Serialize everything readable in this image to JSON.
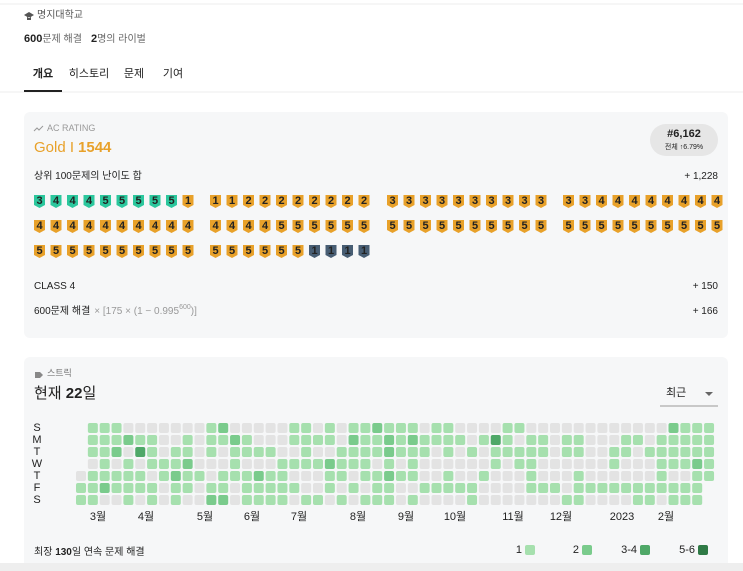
{
  "header": {
    "school": "명지대학교",
    "solved_count": "600",
    "solved_label": "문제 해결",
    "rival_count": "2",
    "rival_label": "명의 라이벌"
  },
  "tabs": [
    "개요",
    "히스토리",
    "문제",
    "기여"
  ],
  "rating": {
    "label": "AC RATING",
    "tier": "Gold I",
    "value": "1544",
    "rank": "#6,162",
    "rank_sub": "전체 ↑6.79%"
  },
  "top100": {
    "label": "상위 100문제의 난이도 합",
    "score": "+ 1,228",
    "badges": [
      {
        "color": "#2bc79d",
        "levels": [
          3,
          4,
          4,
          4,
          5,
          5,
          5,
          5,
          5
        ]
      },
      {
        "color": "#e8a12a",
        "levels": [
          1,
          1,
          1,
          2,
          2,
          2,
          2,
          2,
          2,
          2,
          2,
          3,
          3,
          3,
          3,
          3,
          3,
          3,
          3,
          3,
          3,
          3,
          3,
          4,
          4,
          4,
          4,
          4,
          4,
          4,
          4,
          4,
          4,
          4,
          4,
          4,
          4,
          4,
          4,
          4,
          4,
          4,
          4,
          4,
          4,
          5,
          5,
          5,
          5,
          5,
          5,
          5,
          5,
          5,
          5,
          5,
          5,
          5,
          5,
          5,
          5,
          5,
          5,
          5,
          5,
          5,
          5,
          5,
          5,
          5,
          5,
          5,
          5,
          5,
          5,
          5,
          5,
          5,
          5,
          5,
          5,
          5,
          5,
          5,
          5,
          5,
          5
        ]
      },
      {
        "color": "#475d73",
        "levels": [
          1,
          1,
          1,
          1
        ]
      }
    ]
  },
  "class": {
    "label": "CLASS 4",
    "score": "+ 150"
  },
  "solved_bonus": {
    "label": "600문제 해결",
    "formula": "× [175 × (1 − 0.995",
    "exponent": "600",
    "formula_end": ")]",
    "score": "+ 166"
  },
  "streak": {
    "label": "스트릭",
    "current_prefix": "현재 ",
    "current": "22",
    "current_suffix": "일",
    "period": "최근",
    "days": [
      "S",
      "M",
      "T",
      "W",
      "T",
      "F",
      "S"
    ],
    "months": [
      "3월",
      "4월",
      "5월",
      "6월",
      "7월",
      "8월",
      "9월",
      "10월",
      "11월",
      "12월",
      "2023",
      "2월"
    ],
    "colors": [
      "#e3e3e3",
      "#a6e0ae",
      "#7acb8c",
      "#4fa868",
      "#2f7a46"
    ],
    "grid": [
      [
        null,
        1,
        1,
        1,
        0,
        0,
        0,
        0,
        0,
        0,
        0,
        1,
        2,
        0,
        0,
        0,
        0,
        0,
        1,
        1,
        0,
        1,
        0,
        1,
        1,
        2,
        1,
        1,
        1,
        0,
        1,
        1,
        0,
        0,
        0,
        0,
        1,
        1,
        0,
        0,
        0,
        0,
        0,
        0,
        0,
        0,
        0,
        0,
        0,
        0,
        2,
        1,
        1,
        1
      ],
      [
        null,
        1,
        1,
        1,
        2,
        1,
        1,
        0,
        0,
        1,
        0,
        1,
        1,
        2,
        1,
        0,
        0,
        0,
        1,
        1,
        1,
        1,
        0,
        2,
        1,
        1,
        2,
        1,
        2,
        1,
        1,
        1,
        1,
        0,
        1,
        3,
        1,
        0,
        1,
        1,
        0,
        1,
        1,
        0,
        0,
        0,
        1,
        1,
        0,
        1,
        1,
        1,
        1,
        1
      ],
      [
        null,
        1,
        1,
        2,
        0,
        3,
        1,
        0,
        1,
        1,
        0,
        1,
        0,
        1,
        1,
        1,
        1,
        0,
        0,
        1,
        0,
        0,
        1,
        1,
        1,
        1,
        2,
        1,
        1,
        1,
        0,
        1,
        0,
        1,
        0,
        1,
        1,
        1,
        1,
        1,
        0,
        1,
        1,
        0,
        0,
        1,
        1,
        0,
        1,
        1,
        1,
        1,
        1,
        1
      ],
      [
        null,
        0,
        1,
        0,
        1,
        0,
        1,
        1,
        1,
        2,
        0,
        0,
        0,
        1,
        0,
        0,
        0,
        1,
        1,
        1,
        1,
        2,
        1,
        1,
        1,
        0,
        1,
        0,
        1,
        0,
        0,
        0,
        0,
        0,
        0,
        1,
        0,
        1,
        1,
        0,
        0,
        0,
        0,
        0,
        0,
        1,
        0,
        0,
        0,
        1,
        1,
        1,
        2,
        1
      ],
      [
        0,
        1,
        1,
        1,
        1,
        1,
        0,
        1,
        2,
        1,
        1,
        0,
        1,
        1,
        1,
        2,
        1,
        1,
        0,
        0,
        0,
        1,
        1,
        0,
        1,
        1,
        2,
        1,
        1,
        0,
        0,
        1,
        0,
        0,
        1,
        0,
        0,
        0,
        1,
        0,
        0,
        0,
        1,
        0,
        0,
        0,
        0,
        0,
        0,
        1,
        0,
        0,
        1,
        1
      ],
      [
        1,
        1,
        2,
        1,
        1,
        1,
        1,
        0,
        1,
        1,
        0,
        1,
        1,
        0,
        1,
        1,
        1,
        1,
        1,
        0,
        0,
        1,
        0,
        1,
        0,
        1,
        1,
        0,
        0,
        1,
        1,
        1,
        1,
        1,
        0,
        0,
        0,
        0,
        1,
        1,
        1,
        0,
        1,
        1,
        1,
        1,
        1,
        1,
        1,
        1,
        1,
        1,
        1,
        null
      ],
      [
        1,
        1,
        0,
        0,
        1,
        0,
        1,
        0,
        1,
        0,
        0,
        2,
        2,
        0,
        1,
        1,
        1,
        1,
        0,
        1,
        1,
        0,
        1,
        0,
        1,
        1,
        1,
        0,
        1,
        0,
        0,
        0,
        0,
        1,
        0,
        0,
        0,
        0,
        0,
        0,
        0,
        1,
        1,
        0,
        0,
        0,
        0,
        1,
        1,
        0,
        1,
        1,
        1,
        null
      ]
    ],
    "longest_prefix": "최장 ",
    "longest": "130",
    "longest_suffix": "일 연속 문제 해결",
    "legend": [
      {
        "label": "1",
        "level": 1
      },
      {
        "label": "2",
        "level": 2
      },
      {
        "label": "3-4",
        "level": 3
      },
      {
        "label": "5-6",
        "level": 4
      }
    ]
  }
}
